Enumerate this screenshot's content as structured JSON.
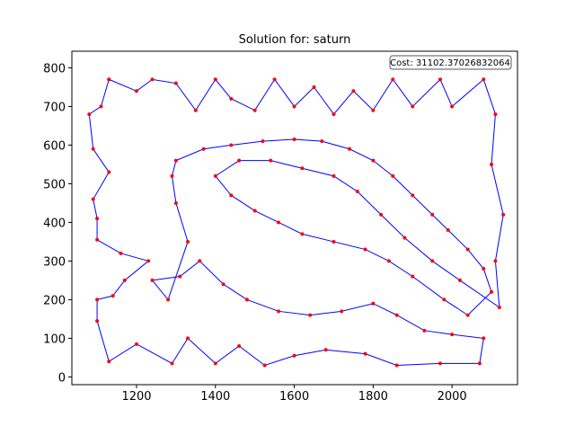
{
  "chart_data": {
    "type": "line",
    "title": "Solution for: saturn",
    "annotation": "Cost: 31102.37026832064",
    "x": [
      1130,
      1110,
      1080,
      1090,
      1130,
      1090,
      1100,
      1100,
      1160,
      1230,
      1170,
      1140,
      1100,
      1100,
      1130,
      1200,
      1290,
      1330,
      1400,
      1460,
      1525,
      1600,
      1680,
      1780,
      1860,
      1970,
      2070,
      2080,
      2000,
      1930,
      1860,
      1800,
      1720,
      1640,
      1560,
      1480,
      1420,
      1360,
      1310,
      1240,
      1280,
      1330,
      1300,
      1290,
      1300,
      1370,
      1440,
      1520,
      1600,
      1670,
      1740,
      1800,
      1850,
      1900,
      1950,
      1990,
      2040,
      2080,
      2100,
      2040,
      1980,
      1900,
      1840,
      1780,
      1700,
      1620,
      1560,
      1500,
      1440,
      1400,
      1460,
      1540,
      1620,
      1700,
      1760,
      1820,
      1880,
      1950,
      2020,
      2120,
      2110,
      2130,
      2100,
      2110,
      2080,
      2000,
      1970,
      1900,
      1850,
      1800,
      1750,
      1700,
      1650,
      1600,
      1550,
      1500,
      1440,
      1400,
      1350,
      1300,
      1240,
      1200,
      1130
    ],
    "values": [
      770,
      700,
      680,
      590,
      530,
      460,
      410,
      355,
      320,
      300,
      250,
      210,
      200,
      145,
      40,
      85,
      35,
      100,
      35,
      80,
      30,
      55,
      70,
      60,
      30,
      35,
      35,
      100,
      110,
      120,
      160,
      190,
      170,
      160,
      170,
      200,
      240,
      300,
      260,
      250,
      200,
      350,
      450,
      520,
      560,
      590,
      600,
      610,
      615,
      610,
      590,
      560,
      520,
      470,
      420,
      380,
      330,
      280,
      220,
      160,
      200,
      260,
      300,
      330,
      350,
      370,
      400,
      430,
      470,
      520,
      560,
      560,
      540,
      520,
      480,
      420,
      360,
      300,
      250,
      180,
      300,
      420,
      550,
      680,
      770,
      700,
      770,
      700,
      770,
      690,
      740,
      680,
      750,
      700,
      770,
      690,
      720,
      770,
      690,
      760,
      770,
      740,
      770
    ],
    "color": "#0000ff",
    "marker_color": "#ff0000",
    "xlim": [
      1036,
      2166
    ],
    "ylim": [
      -20,
      843
    ],
    "xticks": [
      1200,
      1400,
      1600,
      1800,
      2000
    ],
    "yticks": [
      0,
      100,
      200,
      300,
      400,
      500,
      600,
      700,
      800
    ]
  }
}
